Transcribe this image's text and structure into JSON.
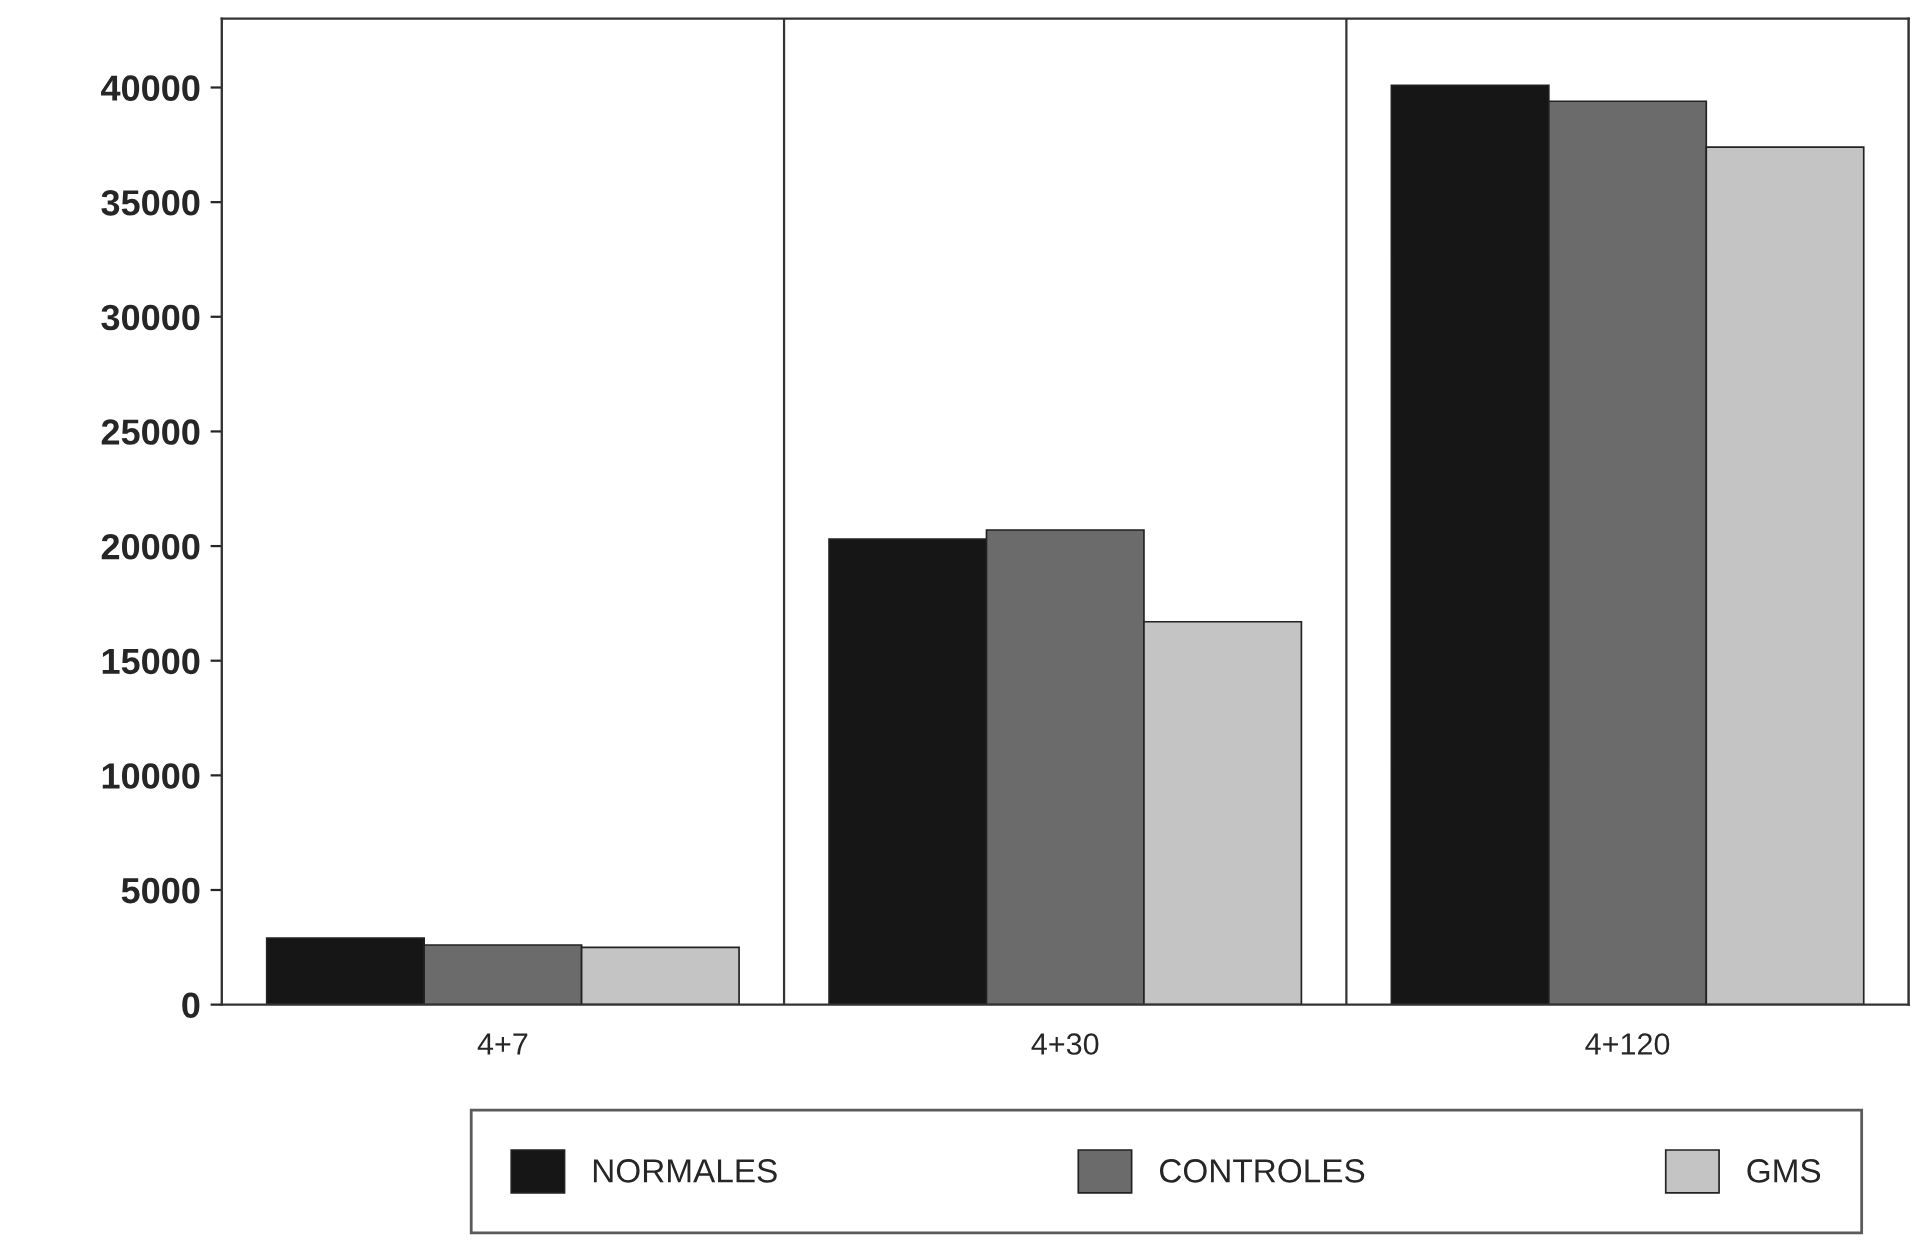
{
  "chart_data": {
    "type": "bar",
    "categories": [
      "4+7",
      "4+30",
      "4+120"
    ],
    "series": [
      {
        "name": "NORMALES",
        "color": "#161616",
        "values": [
          2900,
          20300,
          40100
        ]
      },
      {
        "name": "CONTROLES",
        "color": "#6b6b6b",
        "values": [
          2600,
          20700,
          39400
        ]
      },
      {
        "name": "GMS",
        "color": "#c4c4c4",
        "values": [
          2500,
          16700,
          37400
        ]
      }
    ],
    "ylim": [
      0,
      43000
    ],
    "yticks": [
      0,
      5000,
      10000,
      15000,
      20000,
      25000,
      30000,
      35000,
      40000
    ],
    "grid": "x",
    "legend": "bottom"
  }
}
